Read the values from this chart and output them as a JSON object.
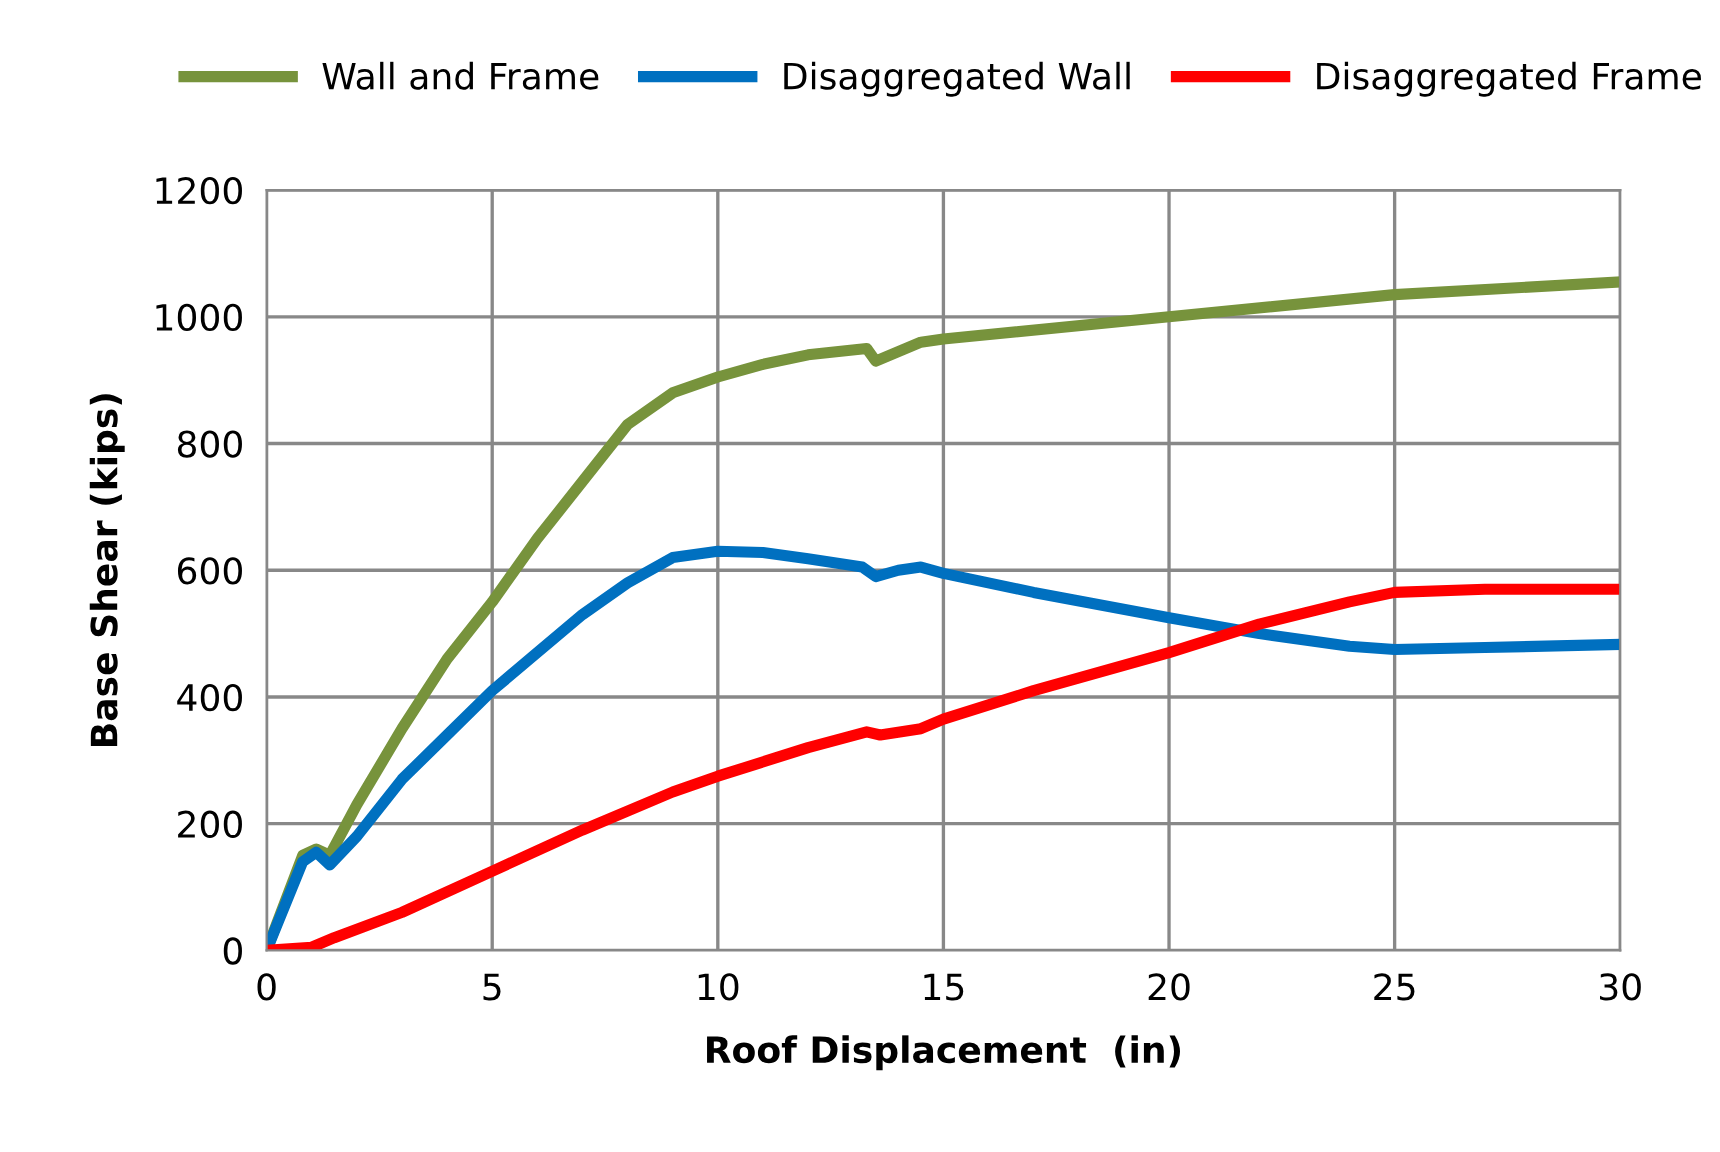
{
  "chart_data": {
    "type": "line",
    "xlabel": "Roof Displacement  (in)",
    "ylabel": "Base Shear (kips)",
    "xlim": [
      0,
      30
    ],
    "ylim": [
      0,
      1200
    ],
    "xticks": [
      0,
      5,
      10,
      15,
      20,
      25,
      30
    ],
    "yticks": [
      0,
      200,
      400,
      600,
      800,
      1000,
      1200
    ],
    "grid": true,
    "legend": "top",
    "marker": "none",
    "line_style": "solid",
    "series": [
      {
        "name": "Wall and Frame",
        "color": "#77933c",
        "x": [
          0,
          0.8,
          1.1,
          1.4,
          2,
          3,
          4,
          5,
          6,
          7,
          8,
          9,
          10,
          11,
          12,
          13.3,
          13.5,
          14,
          14.5,
          15,
          20,
          25,
          30
        ],
        "values": [
          0,
          150,
          160,
          150,
          230,
          350,
          460,
          550,
          650,
          740,
          830,
          880,
          905,
          925,
          940,
          950,
          930,
          945,
          960,
          965,
          1000,
          1035,
          1055
        ]
      },
      {
        "name": "Disaggregated Wall",
        "color": "#0070c0",
        "x": [
          0,
          0.8,
          1.1,
          1.4,
          2,
          3,
          4,
          5,
          6,
          7,
          8,
          9,
          10,
          11,
          12,
          13.2,
          13.5,
          14,
          14.5,
          15,
          17,
          20,
          22,
          24,
          25,
          27,
          30
        ],
        "values": [
          0,
          140,
          155,
          135,
          180,
          270,
          340,
          410,
          470,
          530,
          580,
          620,
          630,
          628,
          618,
          605,
          590,
          600,
          605,
          595,
          565,
          525,
          500,
          480,
          475,
          478,
          483
        ]
      },
      {
        "name": "Disaggregated Frame",
        "color": "#ff0000",
        "x": [
          0,
          1,
          1.5,
          3,
          5,
          7,
          9,
          10,
          12,
          13.3,
          13.6,
          14.5,
          15,
          17,
          20,
          22,
          24,
          25,
          27,
          30
        ],
        "values": [
          0,
          5,
          20,
          60,
          125,
          190,
          250,
          275,
          320,
          345,
          340,
          350,
          365,
          410,
          470,
          515,
          550,
          565,
          570,
          570
        ]
      }
    ]
  }
}
